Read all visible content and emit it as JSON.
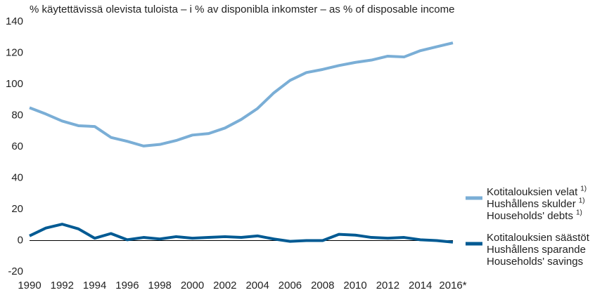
{
  "chart_data": {
    "type": "line",
    "title": "% käytettävissä olevista tuloista – i % av disponibla inkomster – as % of disposable income",
    "x": [
      1990,
      1991,
      1992,
      1993,
      1994,
      1995,
      1996,
      1997,
      1998,
      1999,
      2000,
      2001,
      2002,
      2003,
      2004,
      2005,
      2006,
      2007,
      2008,
      2009,
      2010,
      2011,
      2012,
      2013,
      2014,
      2015,
      2016
    ],
    "xlim": [
      1990,
      2016
    ],
    "xticks": [
      1990,
      1992,
      1994,
      1996,
      1998,
      2000,
      2002,
      2004,
      2006,
      2008,
      2010,
      2012,
      2014,
      {
        "value": 2016,
        "label": "2016*"
      }
    ],
    "ylim": [
      -20,
      140
    ],
    "yticks": [
      -20,
      0,
      20,
      40,
      60,
      80,
      100,
      120,
      140
    ],
    "grid": false,
    "legend": "right",
    "series": [
      {
        "name": [
          "Kotitalouksien velat",
          "Hushållens skulder",
          "Households' debts"
        ],
        "note": "1)",
        "color": "#7aaed6",
        "values": [
          85,
          81,
          76.5,
          73.5,
          73,
          66,
          63.5,
          60.5,
          61.5,
          64,
          67.5,
          68.5,
          72,
          77.5,
          84.5,
          94.5,
          102.5,
          107.5,
          109.5,
          112,
          114,
          115.5,
          118,
          117.5,
          121.5,
          124,
          126.5
        ]
      },
      {
        "name": [
          "Kotitalouksien säästöt",
          "Hushållens sparande",
          "Households' savings"
        ],
        "color": "#005a93",
        "values": [
          3,
          8,
          10.5,
          7.5,
          1.5,
          4.5,
          0.5,
          2,
          1,
          2.5,
          1.5,
          2,
          2.5,
          2,
          3,
          1,
          -0.5,
          0,
          0,
          4,
          3.5,
          2,
          1.5,
          2,
          0.5,
          0,
          -1
        ]
      }
    ]
  }
}
